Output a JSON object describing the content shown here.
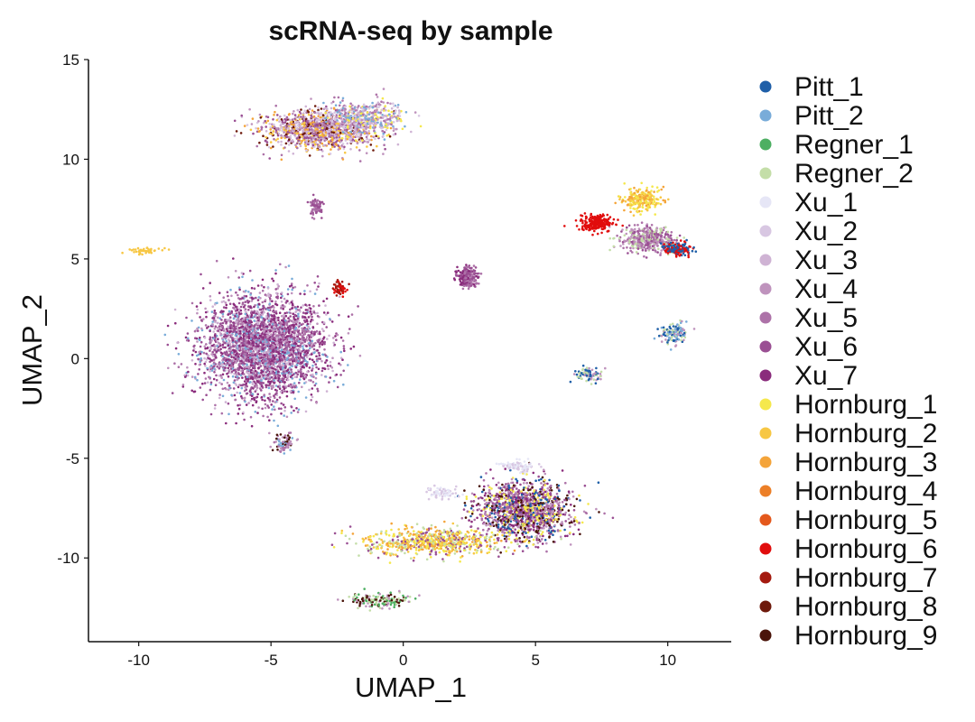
{
  "chart_data": {
    "type": "scatter",
    "title": "scRNA-seq by sample",
    "xlabel": "UMAP_1",
    "ylabel": "UMAP_2",
    "xlim": [
      -11.9,
      12.4
    ],
    "ylim": [
      -14.2,
      15
    ],
    "xticks": [
      -10,
      -5,
      0,
      5,
      10
    ],
    "yticks": [
      -10,
      -5,
      0,
      5,
      10,
      15
    ],
    "xtick_labels": [
      "-10",
      "-5",
      "0",
      "5",
      "10"
    ],
    "ytick_labels": [
      "-10",
      "-5",
      "0",
      "5",
      "10",
      "15"
    ],
    "grid": false,
    "legend_position": "right",
    "series": [
      {
        "name": "Pitt_1",
        "color": "#1f5fa8"
      },
      {
        "name": "Pitt_2",
        "color": "#79acd9"
      },
      {
        "name": "Regner_1",
        "color": "#4daf62"
      },
      {
        "name": "Regner_2",
        "color": "#c4dea8"
      },
      {
        "name": "Xu_1",
        "color": "#e6e6f6"
      },
      {
        "name": "Xu_2",
        "color": "#d8c7e2"
      },
      {
        "name": "Xu_3",
        "color": "#cfb3d4"
      },
      {
        "name": "Xu_4",
        "color": "#bf93bd"
      },
      {
        "name": "Xu_5",
        "color": "#ad72a8"
      },
      {
        "name": "Xu_6",
        "color": "#9a4f93"
      },
      {
        "name": "Xu_7",
        "color": "#8a2c7c"
      },
      {
        "name": "Hornburg_1",
        "color": "#f5e84c"
      },
      {
        "name": "Hornburg_2",
        "color": "#f7c744"
      },
      {
        "name": "Hornburg_3",
        "color": "#f4a43a"
      },
      {
        "name": "Hornburg_4",
        "color": "#ec7f27"
      },
      {
        "name": "Hornburg_5",
        "color": "#e4581c"
      },
      {
        "name": "Hornburg_6",
        "color": "#e10d0d"
      },
      {
        "name": "Hornburg_7",
        "color": "#a41a0f"
      },
      {
        "name": "Hornburg_8",
        "color": "#6e1a0c"
      },
      {
        "name": "Hornburg_9",
        "color": "#4a140a"
      }
    ],
    "clusters": [
      {
        "cx": -5.3,
        "cy": 0.6,
        "sx": 2.1,
        "sy": 2.3,
        "n": 3200,
        "palette": [
          "Xu_7",
          "Xu_6",
          "Xu_5",
          "Xu_4",
          "Xu_3",
          "Xu_7",
          "Xu_6",
          "Pitt_2"
        ]
      },
      {
        "cx": -3.2,
        "cy": 11.5,
        "sx": 1.9,
        "sy": 0.9,
        "n": 1100,
        "palette": [
          "Xu_5",
          "Xu_4",
          "Xu_3",
          "Hornburg_2",
          "Hornburg_3",
          "Xu_6",
          "Xu_2",
          "Hornburg_8"
        ]
      },
      {
        "cx": -1.5,
        "cy": 12.0,
        "sx": 1.4,
        "sy": 0.8,
        "n": 500,
        "palette": [
          "Xu_4",
          "Xu_5",
          "Xu_3",
          "Xu_2",
          "Pitt_2",
          "Hornburg_1"
        ]
      },
      {
        "cx": 4.6,
        "cy": -7.6,
        "sx": 1.6,
        "sy": 1.3,
        "n": 1400,
        "palette": [
          "Xu_7",
          "Xu_6",
          "Xu_5",
          "Xu_4",
          "Hornburg_9",
          "Hornburg_1",
          "Pitt_1"
        ]
      },
      {
        "cx": 1.1,
        "cy": -9.2,
        "sx": 2.3,
        "sy": 0.6,
        "n": 700,
        "palette": [
          "Hornburg_2",
          "Hornburg_1",
          "Regner_2",
          "Hornburg_3",
          "Xu_6"
        ]
      },
      {
        "cx": -0.8,
        "cy": -12.1,
        "sx": 1.0,
        "sy": 0.35,
        "n": 160,
        "palette": [
          "Regner_1",
          "Hornburg_9",
          "Xu_4",
          "Regner_2"
        ]
      },
      {
        "cx": 9.2,
        "cy": 6.0,
        "sx": 0.9,
        "sy": 0.55,
        "n": 450,
        "palette": [
          "Xu_5",
          "Xu_6",
          "Xu_4",
          "Regner_2"
        ]
      },
      {
        "cx": 7.3,
        "cy": 6.8,
        "sx": 0.6,
        "sy": 0.35,
        "n": 220,
        "palette": [
          "Hornburg_6"
        ]
      },
      {
        "cx": 10.4,
        "cy": 5.5,
        "sx": 0.5,
        "sy": 0.3,
        "n": 150,
        "palette": [
          "Hornburg_6",
          "Pitt_1"
        ]
      },
      {
        "cx": 9.0,
        "cy": 8.0,
        "sx": 0.7,
        "sy": 0.5,
        "n": 240,
        "palette": [
          "Hornburg_2",
          "Hornburg_1",
          "Hornburg_3"
        ]
      },
      {
        "cx": 10.2,
        "cy": 1.3,
        "sx": 0.45,
        "sy": 0.45,
        "n": 140,
        "palette": [
          "Regner_2",
          "Pitt_2",
          "Xu_4",
          "Pitt_1"
        ]
      },
      {
        "cx": 7.0,
        "cy": -0.8,
        "sx": 0.5,
        "sy": 0.3,
        "n": 90,
        "palette": [
          "Xu_4",
          "Regner_2",
          "Pitt_1"
        ]
      },
      {
        "cx": 2.4,
        "cy": 4.1,
        "sx": 0.35,
        "sy": 0.45,
        "n": 220,
        "palette": [
          "Xu_6",
          "Xu_7",
          "Xu_5"
        ]
      },
      {
        "cx": -2.4,
        "cy": 3.5,
        "sx": 0.25,
        "sy": 0.4,
        "n": 60,
        "palette": [
          "Hornburg_6",
          "Hornburg_7"
        ]
      },
      {
        "cx": -3.3,
        "cy": 7.6,
        "sx": 0.25,
        "sy": 0.4,
        "n": 70,
        "palette": [
          "Xu_6",
          "Xu_5"
        ]
      },
      {
        "cx": -4.5,
        "cy": -4.2,
        "sx": 0.4,
        "sy": 0.5,
        "n": 70,
        "palette": [
          "Xu_5",
          "Pitt_2",
          "Hornburg_9",
          "Xu_4"
        ]
      },
      {
        "cx": -9.7,
        "cy": 5.4,
        "sx": 0.6,
        "sy": 0.15,
        "n": 40,
        "palette": [
          "Hornburg_2"
        ]
      },
      {
        "cx": 4.3,
        "cy": -5.4,
        "sx": 0.6,
        "sy": 0.3,
        "n": 80,
        "palette": [
          "Xu_2",
          "Xu_1"
        ]
      },
      {
        "cx": 1.4,
        "cy": -6.7,
        "sx": 0.6,
        "sy": 0.25,
        "n": 70,
        "palette": [
          "Xu_2",
          "Xu_1"
        ]
      }
    ]
  }
}
